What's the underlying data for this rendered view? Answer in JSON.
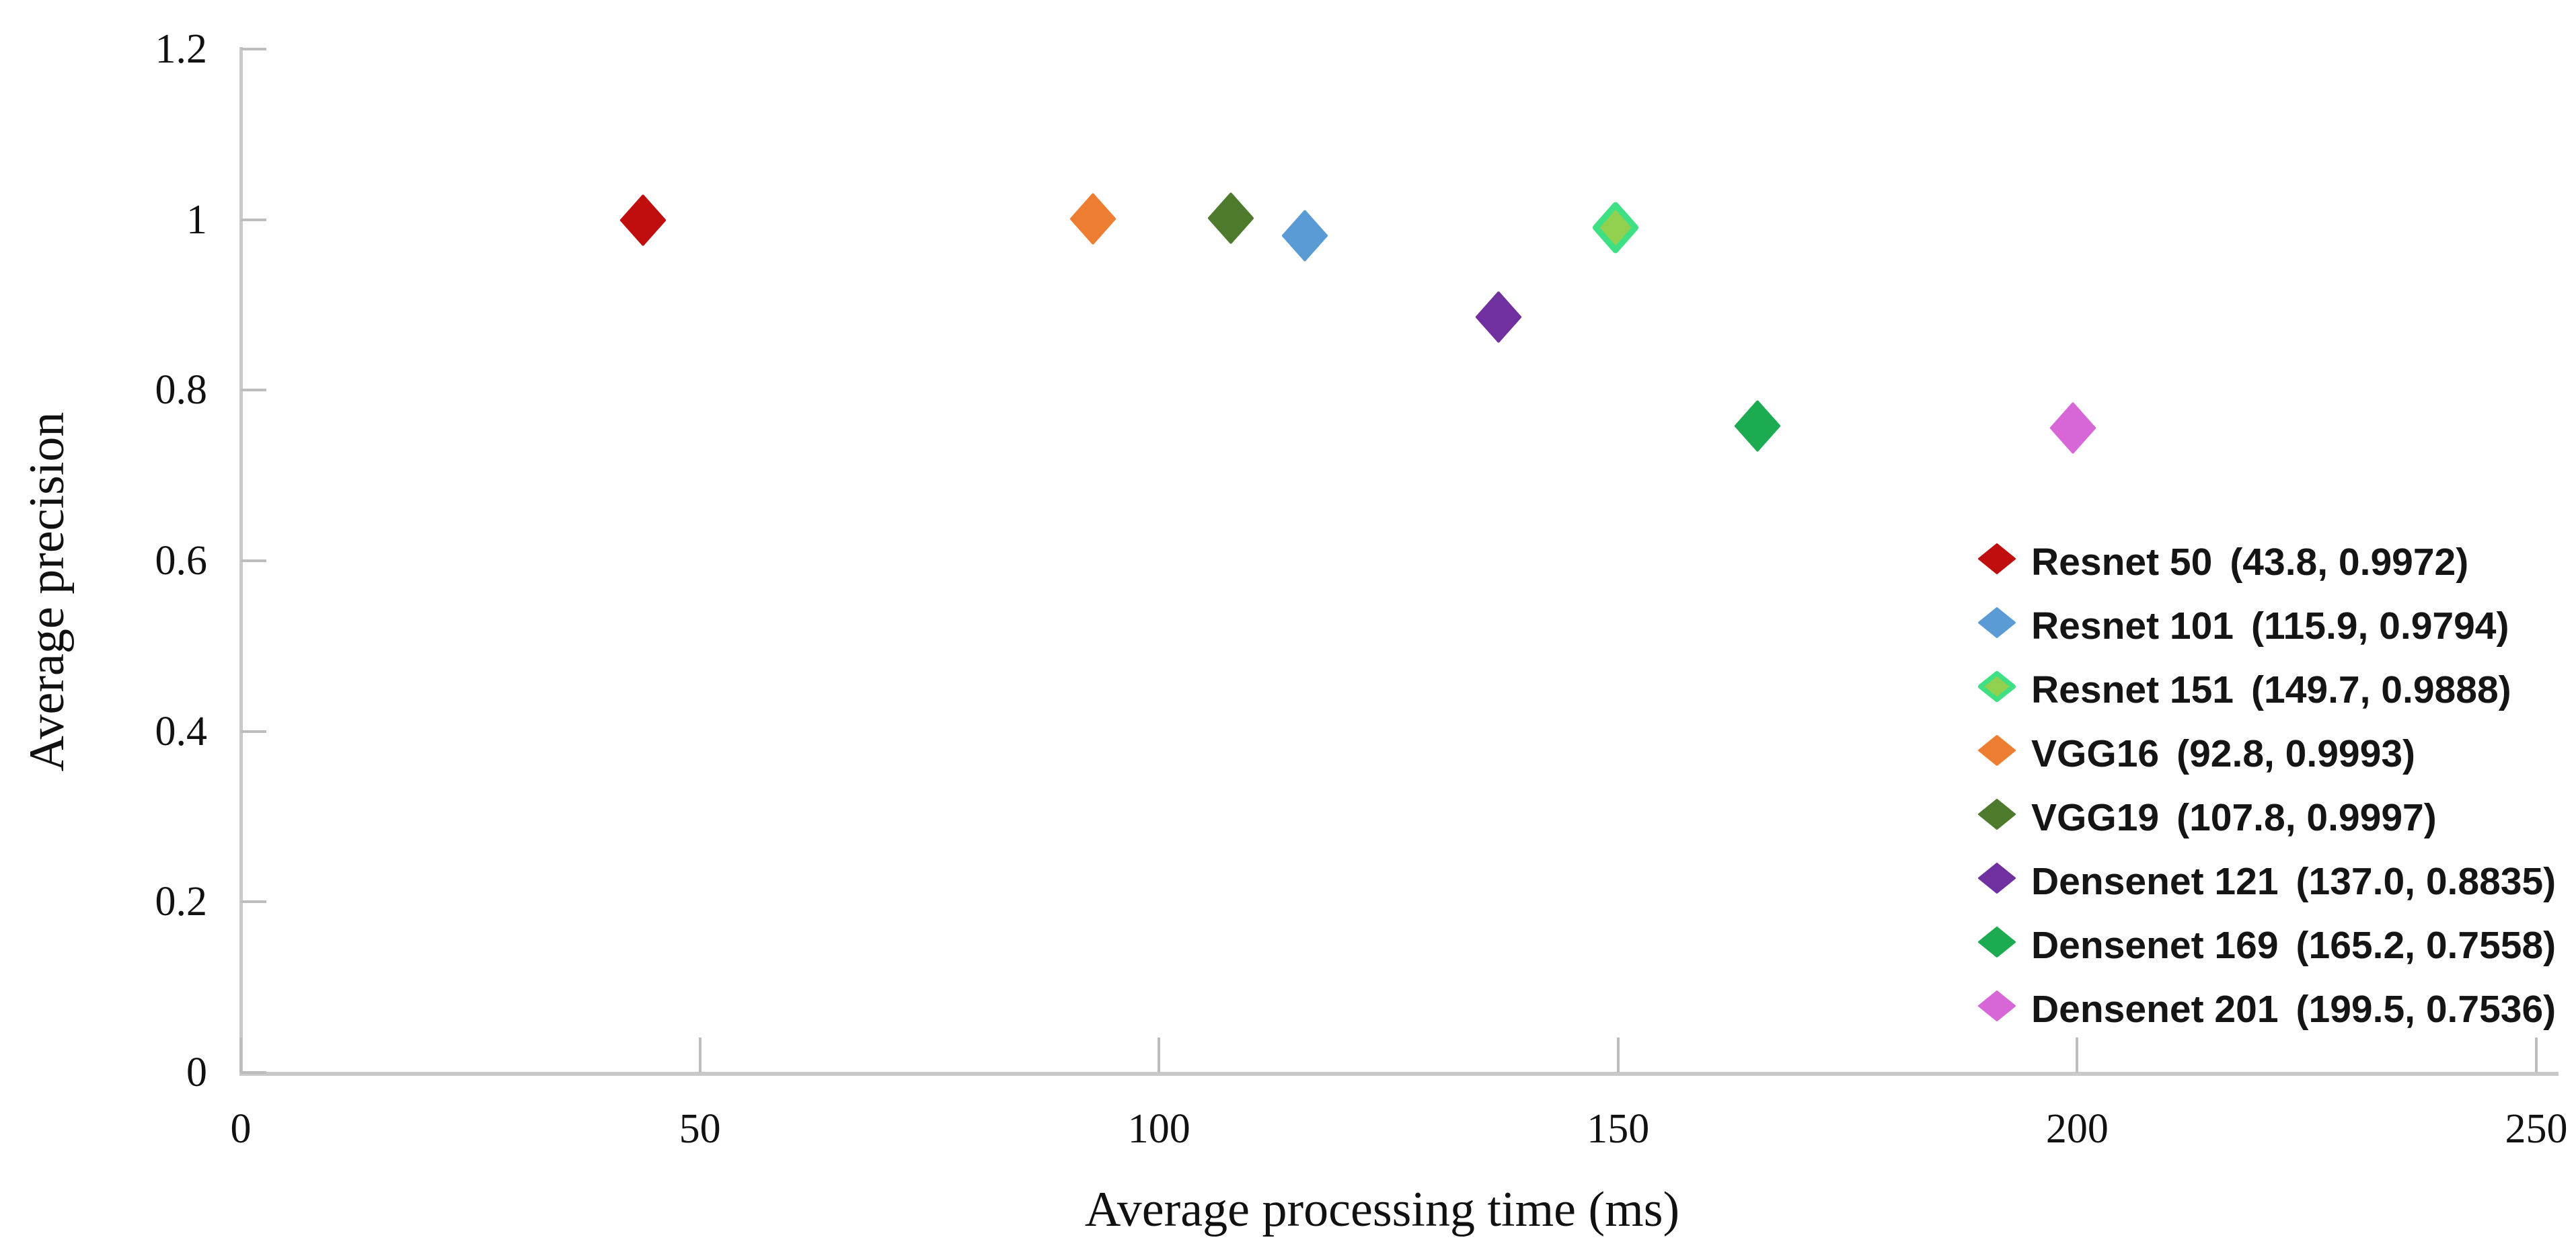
{
  "chart_data": {
    "type": "scatter",
    "title": "",
    "xlabel": "Average processing time (ms)",
    "ylabel": "Average precision",
    "xlim": [
      0,
      250
    ],
    "ylim": [
      0,
      1.2
    ],
    "grid": false,
    "legend_position": "right-middle",
    "xticks": [
      {
        "value": 0,
        "label": "0"
      },
      {
        "value": 50,
        "label": "50"
      },
      {
        "value": 100,
        "label": "100"
      },
      {
        "value": 150,
        "label": "150"
      },
      {
        "value": 200,
        "label": "200"
      },
      {
        "value": 250,
        "label": "250"
      }
    ],
    "yticks": [
      {
        "value": 0,
        "label": "0"
      },
      {
        "value": 0.2,
        "label": "0.2"
      },
      {
        "value": 0.4,
        "label": "0.4"
      },
      {
        "value": 0.6,
        "label": "0.6"
      },
      {
        "value": 0.8,
        "label": "0.8"
      },
      {
        "value": 1,
        "label": "1"
      },
      {
        "value": 1.2,
        "label": "1.2"
      }
    ],
    "series": [
      {
        "name": "Resnet 50",
        "x": 43.8,
        "y": 0.9972,
        "coords_label": "(43.8, 0.9972)",
        "color": "#c00d0d",
        "edge": "#c00d0d"
      },
      {
        "name": "Resnet 101",
        "x": 115.9,
        "y": 0.9794,
        "coords_label": "(115.9, 0.9794)",
        "color": "#5b9bd5",
        "edge": "#5b9bd5"
      },
      {
        "name": "Resnet 151",
        "x": 149.7,
        "y": 0.9888,
        "coords_label": "(149.7, 0.9888)",
        "color": "#92d050",
        "edge": "#3fdf84"
      },
      {
        "name": "VGG16",
        "x": 92.8,
        "y": 0.9993,
        "coords_label": "(92.8, 0.9993)",
        "color": "#ed7d31",
        "edge": "#ed7d31"
      },
      {
        "name": "VGG19",
        "x": 107.8,
        "y": 0.9997,
        "coords_label": "(107.8, 0.9997)",
        "color": "#4e7a2d",
        "edge": "#4e7a2d"
      },
      {
        "name": "Densenet 121",
        "x": 137.0,
        "y": 0.8835,
        "coords_label": "(137.0, 0.8835)",
        "color": "#7030a0",
        "edge": "#7030a0"
      },
      {
        "name": "Densenet 169",
        "x": 165.2,
        "y": 0.7558,
        "coords_label": "(165.2, 0.7558)",
        "color": "#1cab50",
        "edge": "#1cab50"
      },
      {
        "name": "Densenet 201",
        "x": 199.5,
        "y": 0.7536,
        "coords_label": "(199.5, 0.7536)",
        "color": "#d767d7",
        "edge": "#d767d7"
      }
    ]
  }
}
